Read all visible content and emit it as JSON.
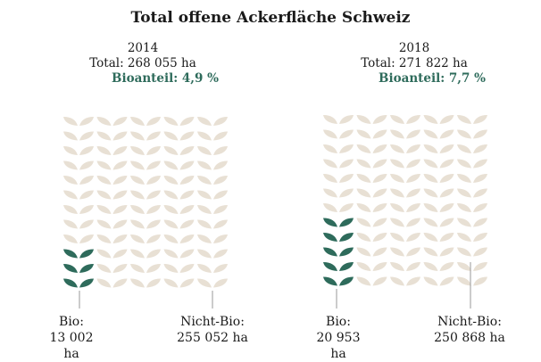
{
  "colors": {
    "bio": "#2e6b5b",
    "nicht_bio": "#e8e0d4",
    "share_text": "#2e6b5b",
    "leader_line": "#999999"
  },
  "chart_data": {
    "type": "pictogram",
    "title": "Total offene Ackerfläche Schweiz",
    "icon": "leaf-pair-icon",
    "panels": [
      {
        "year": "2014",
        "total_label": "Total: 268 055 ha",
        "share_label": "Bioanteil: 4,9 %",
        "total_ha": 268055,
        "bio_share_pct": 4.9,
        "icon_columns": 5,
        "icon_rows": 12,
        "bio_icons": 3,
        "series": [
          {
            "name": "Bio:",
            "value_ha": 13002,
            "value_label": "13 002 ha"
          },
          {
            "name": "Nicht-Bio:",
            "value_ha": 255052,
            "value_label": "255 052 ha"
          }
        ]
      },
      {
        "year": "2018",
        "total_label": "Total: 271 822 ha",
        "share_label": "Bioanteil: 7,7 %",
        "total_ha": 271822,
        "bio_share_pct": 7.7,
        "icon_columns": 5,
        "icon_rows": 12,
        "bio_icons": 5,
        "series": [
          {
            "name": "Bio:",
            "value_ha": 20953,
            "value_label": "20 953 ha"
          },
          {
            "name": "Nicht-Bio:",
            "value_ha": 250868,
            "value_label": "250 868 ha"
          }
        ]
      }
    ]
  }
}
